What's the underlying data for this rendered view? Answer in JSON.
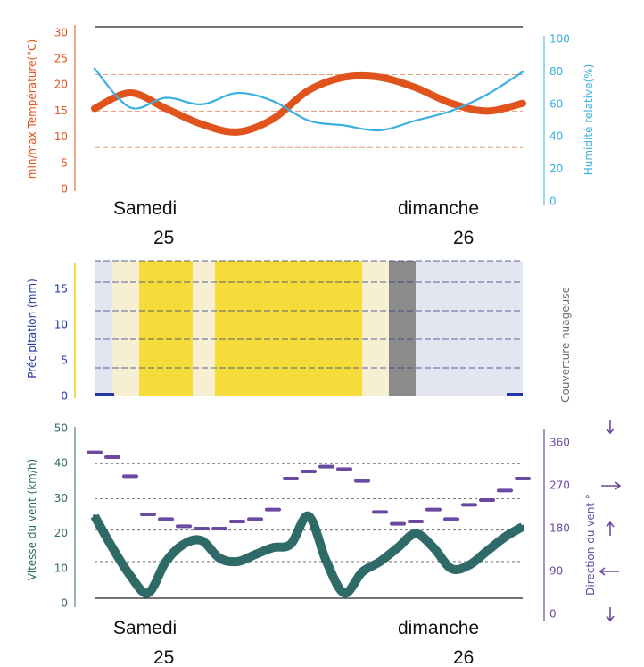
{
  "colors": {
    "temperature": "#e0531c",
    "humidity": "#3ab0de",
    "precip_axis": "#2236a8",
    "cloud_label": "#6b6b6b",
    "wind_speed": "#2e6b68",
    "wind_dir": "#6a4aa0",
    "yellow": "#f5dc3a"
  },
  "date_labels": {
    "top": {
      "day1": "Samedi",
      "day1_num": "25",
      "day2": "dimanche",
      "day2_num": "26"
    },
    "bottom": {
      "day1": "Samedi",
      "day1_num": "25",
      "day2": "dimanche",
      "day2_num": "26"
    }
  },
  "chart_data": [
    {
      "type": "line",
      "title": "",
      "xlabel": "",
      "ylabel": "min/max Température(°C)",
      "y2label": "Humidité relative(%)",
      "ylim": [
        0,
        31
      ],
      "y2lim": [
        0,
        100
      ],
      "yticks": [
        "0",
        "5",
        "10",
        "15",
        "20",
        "25",
        "30"
      ],
      "y2ticks": [
        "0",
        "20",
        "40",
        "60",
        "80",
        "100"
      ],
      "x": [
        0,
        4,
        8,
        12,
        16,
        20,
        24,
        28,
        32,
        36,
        40,
        44,
        48
      ],
      "series": [
        {
          "name": "temperature",
          "axis": "left",
          "values": [
            15.5,
            18.5,
            15.5,
            12.5,
            11,
            13.5,
            19,
            21.5,
            21.5,
            19.5,
            16.5,
            15,
            16.5
          ]
        },
        {
          "name": "humidity",
          "axis": "right",
          "values": [
            82,
            58,
            64,
            60,
            67,
            62,
            50,
            47,
            44,
            50,
            56,
            66,
            80
          ]
        }
      ],
      "grid": true
    },
    {
      "type": "area",
      "title": "",
      "ylabel": "Précipitation (mm)",
      "y2label": "Couverture nuageuse",
      "ylim": [
        0,
        19
      ],
      "yticks": [
        "0",
        "5",
        "10",
        "15"
      ],
      "x": [
        0,
        48
      ],
      "precip": [
        0,
        0
      ],
      "cloud_bands": [
        {
          "from": 0,
          "to": 2,
          "tone": "sky"
        },
        {
          "from": 2,
          "to": 5,
          "tone": "cloud"
        },
        {
          "from": 5,
          "to": 11,
          "tone": "sun"
        },
        {
          "from": 11,
          "to": 13.5,
          "tone": "cloud"
        },
        {
          "from": 13.5,
          "to": 30,
          "tone": "sun"
        },
        {
          "from": 30,
          "to": 33,
          "tone": "cloud"
        },
        {
          "from": 33,
          "to": 36,
          "tone": "overcast"
        },
        {
          "from": 36,
          "to": 48,
          "tone": "sky"
        }
      ],
      "grid": true
    },
    {
      "type": "line",
      "title": "",
      "ylabel": "Vitesse du vent (km/h)",
      "y2label": "Direction du vent °",
      "ylim": [
        0,
        50
      ],
      "y2lim": [
        0,
        360
      ],
      "yticks": [
        "0",
        "10",
        "20",
        "30",
        "40",
        "50"
      ],
      "y2ticks": [
        "0",
        "90",
        "180",
        "270",
        "360"
      ],
      "x": [
        0,
        2,
        4,
        6,
        8,
        10,
        12,
        14,
        16,
        18,
        20,
        22,
        24,
        26,
        28,
        30,
        32,
        34,
        36,
        38,
        40,
        42,
        44,
        46,
        48
      ],
      "series": [
        {
          "name": "wind_speed",
          "axis": "left",
          "values": [
            25,
            16,
            8,
            3,
            12,
            17,
            18,
            13,
            12,
            14,
            16,
            17,
            25,
            12,
            3,
            9,
            12,
            16,
            20,
            16,
            10,
            11,
            15,
            19,
            22
          ]
        },
        {
          "name": "wind_direction",
          "axis": "right",
          "values": [
            340,
            330,
            290,
            210,
            200,
            185,
            180,
            180,
            195,
            200,
            220,
            285,
            300,
            310,
            305,
            280,
            215,
            190,
            195,
            220,
            200,
            230,
            240,
            260,
            285
          ]
        }
      ],
      "grid": true
    }
  ]
}
